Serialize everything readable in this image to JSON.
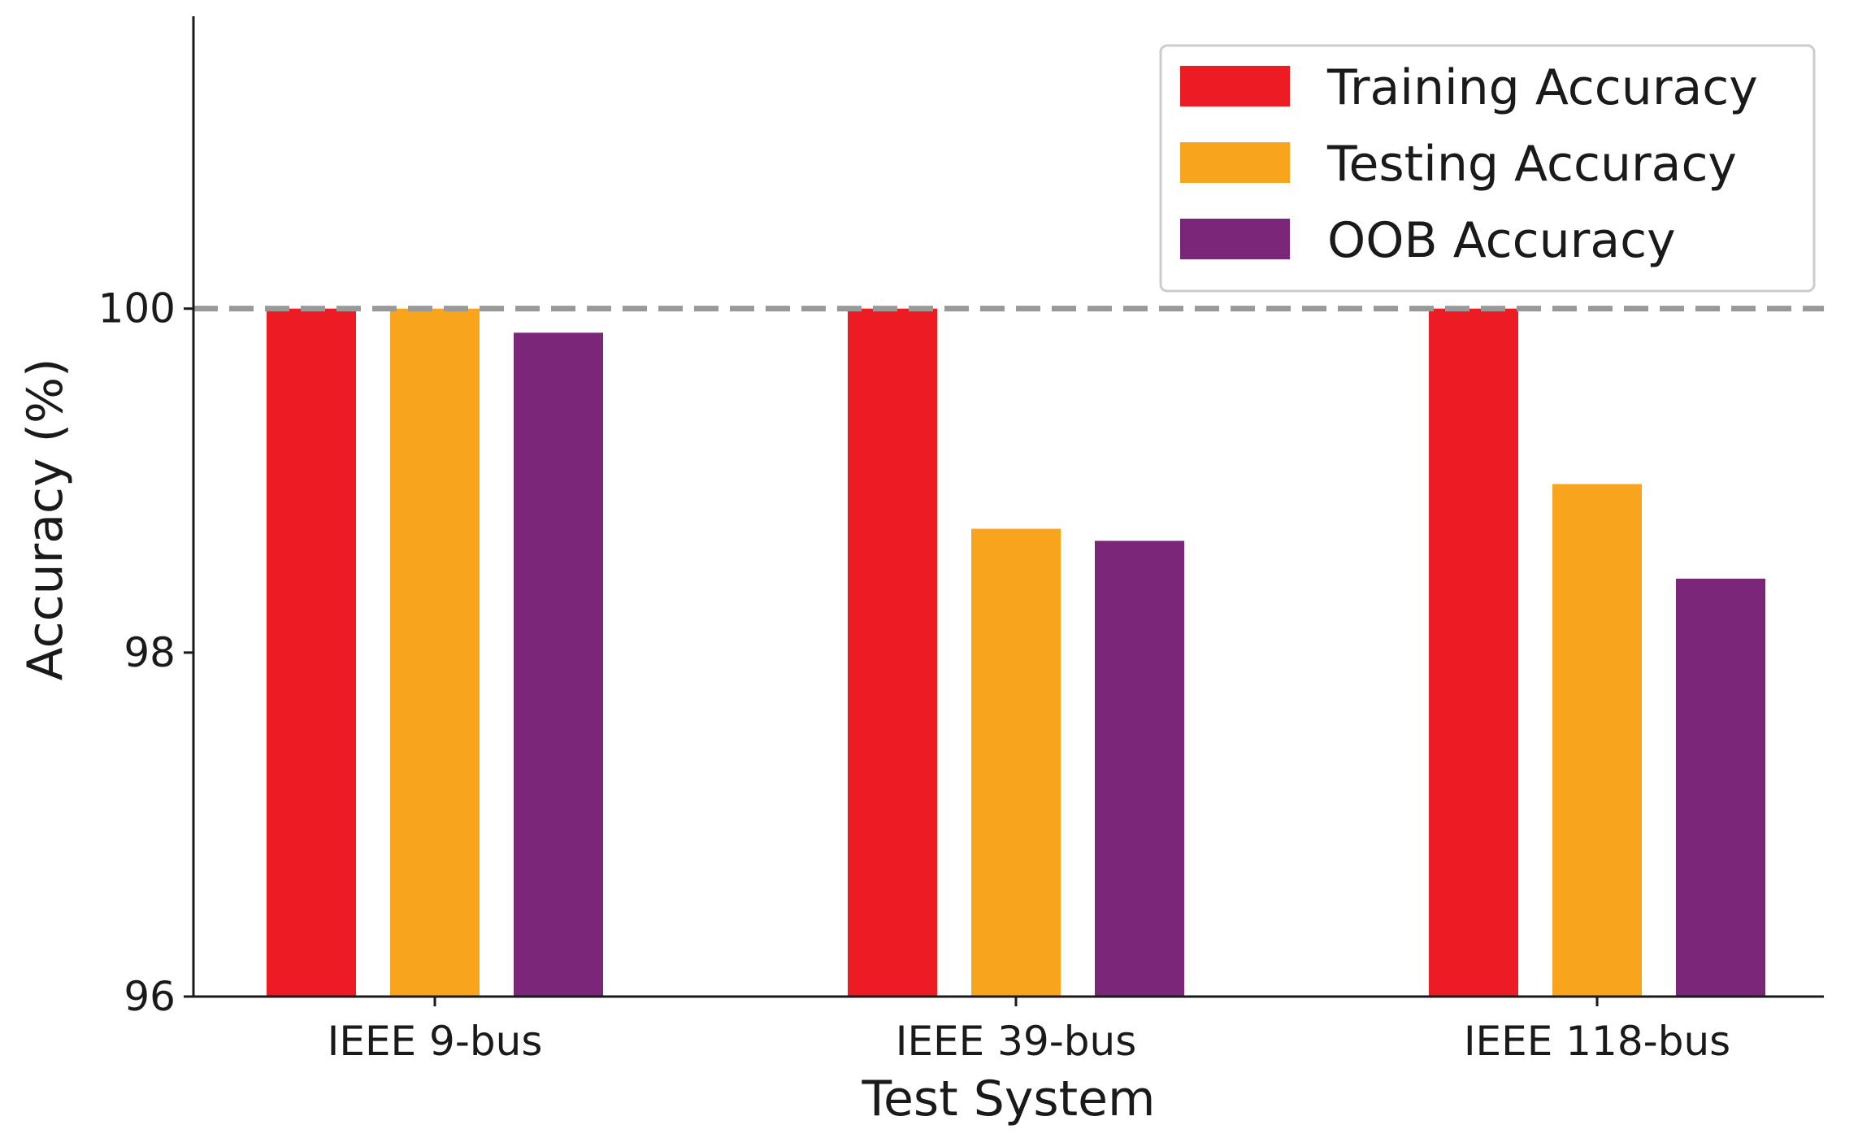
{
  "chart_data": {
    "type": "bar",
    "title": "",
    "xlabel": "Test System",
    "ylabel": "Accuracy (%)",
    "categories": [
      "IEEE 9-bus",
      "IEEE 39-bus",
      "IEEE 118-bus"
    ],
    "series": [
      {
        "name": "Training Accuracy",
        "color": "#ed1c24",
        "values": [
          100.0,
          100.0,
          100.0
        ]
      },
      {
        "name": "Testing Accuracy",
        "color": "#f8a51d",
        "values": [
          100.0,
          98.72,
          98.98
        ]
      },
      {
        "name": "OOB Accuracy",
        "color": "#7b2679",
        "values": [
          99.86,
          98.65,
          98.43
        ]
      }
    ],
    "ylim": [
      96,
      101.7
    ],
    "yticks": [
      96,
      98,
      100
    ],
    "ytick_labels": [
      "96",
      "98",
      "100"
    ],
    "reference_line": {
      "value": 100,
      "style": "dashed",
      "color": "#999999"
    },
    "legend": {
      "position": "top-right"
    },
    "grid": false
  }
}
